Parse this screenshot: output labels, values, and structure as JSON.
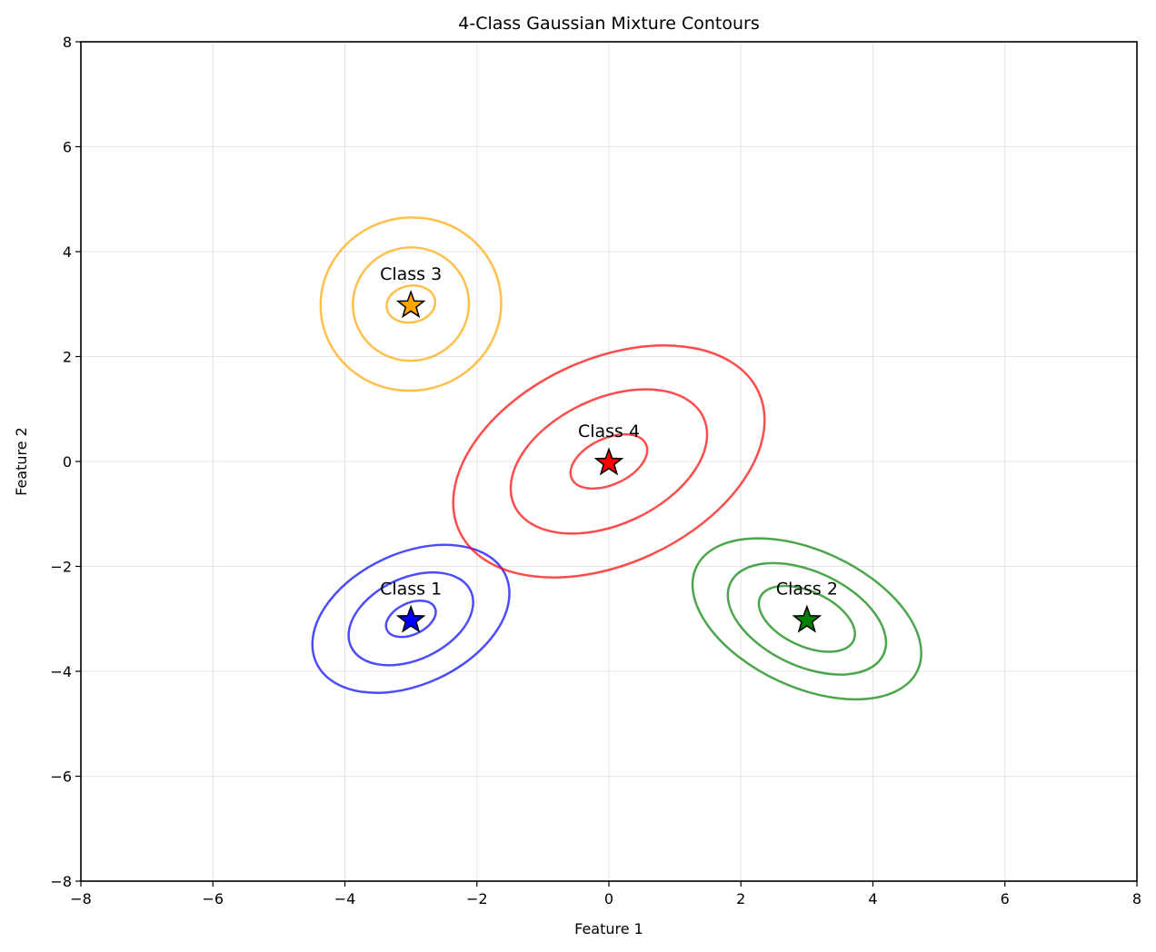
{
  "chart_data": {
    "type": "contour",
    "title": "4-Class Gaussian Mixture Contours",
    "xlabel": "Feature 1",
    "ylabel": "Feature 2",
    "xlim": [
      -8,
      8
    ],
    "ylim": [
      -8,
      8
    ],
    "xticks": [
      -8,
      -6,
      -4,
      -2,
      0,
      2,
      4,
      6,
      8
    ],
    "yticks": [
      -8,
      -6,
      -4,
      -2,
      0,
      2,
      4,
      6,
      8
    ],
    "xtick_labels": [
      "−8",
      "−6",
      "−4",
      "−2",
      "0",
      "2",
      "4",
      "6",
      "8"
    ],
    "ytick_labels": [
      "−8",
      "−6",
      "−4",
      "−2",
      "0",
      "2",
      "4",
      "6",
      "8"
    ],
    "grid": true,
    "classes": [
      {
        "label": "Class 1",
        "mean": [
          -3,
          -3
        ],
        "color": "#0000ff",
        "contours": [
          {
            "cx": -3.0,
            "cy": -3.0,
            "a": 0.4,
            "b": 0.3,
            "angle": 25
          },
          {
            "cx": -3.0,
            "cy": -3.0,
            "a": 1.0,
            "b": 0.78,
            "angle": 25
          },
          {
            "cx": -3.0,
            "cy": -3.0,
            "a": 1.58,
            "b": 1.25,
            "angle": 25
          }
        ]
      },
      {
        "label": "Class 2",
        "mean": [
          3,
          -3
        ],
        "color": "#008000",
        "contours": [
          {
            "cx": 3.0,
            "cy": -3.0,
            "a": 0.78,
            "b": 0.52,
            "angle": -25
          },
          {
            "cx": 3.0,
            "cy": -3.0,
            "a": 1.28,
            "b": 0.9,
            "angle": -25
          },
          {
            "cx": 3.0,
            "cy": -3.0,
            "a": 1.85,
            "b": 1.3,
            "angle": -25
          }
        ]
      },
      {
        "label": "Class 3",
        "mean": [
          -3,
          3
        ],
        "color": "#ffa500",
        "contours": [
          {
            "cx": -3.0,
            "cy": 3.0,
            "a": 0.37,
            "b": 0.35,
            "angle": 10
          },
          {
            "cx": -3.0,
            "cy": 3.0,
            "a": 0.88,
            "b": 1.08,
            "angle": 10
          },
          {
            "cx": -3.0,
            "cy": 3.0,
            "a": 1.37,
            "b": 1.65,
            "angle": 10
          }
        ]
      },
      {
        "label": "Class 4",
        "mean": [
          0,
          0
        ],
        "color": "#ff0000",
        "contours": [
          {
            "cx": 0.0,
            "cy": 0.0,
            "a": 0.62,
            "b": 0.44,
            "angle": 25
          },
          {
            "cx": 0.0,
            "cy": 0.0,
            "a": 1.58,
            "b": 1.2,
            "angle": 25
          },
          {
            "cx": 0.0,
            "cy": 0.0,
            "a": 2.5,
            "b": 1.95,
            "angle": 25
          }
        ]
      }
    ],
    "contour_opacity": 0.7
  }
}
